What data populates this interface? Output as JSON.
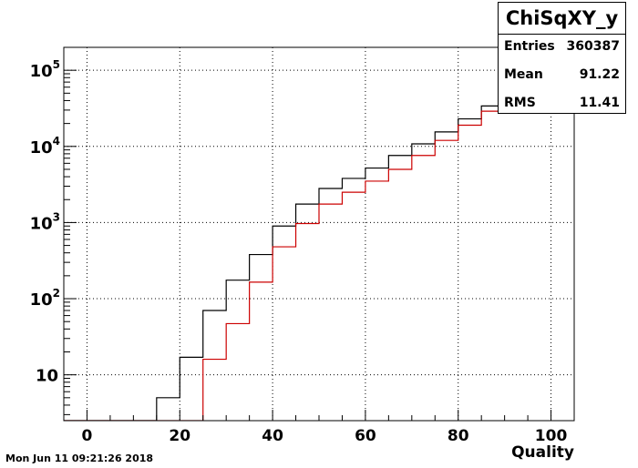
{
  "timestamp": "Mon Jun 11 09:21:26 2018",
  "stats": {
    "title": "ChiSqXY_y",
    "rows": [
      {
        "key": "Entries",
        "value": "360387"
      },
      {
        "key": "Mean",
        "value": "91.22"
      },
      {
        "key": "RMS",
        "value": "11.41"
      }
    ]
  },
  "colors": {
    "series1": "#000000",
    "series2": "#cc0000"
  },
  "chart_data": {
    "type": "line",
    "style": "step-histogram",
    "xlabel": "Quality",
    "ylabel": "",
    "xlim": [
      -5,
      105
    ],
    "ylim": [
      2.5,
      200000
    ],
    "yscale": "log",
    "grid": true,
    "x_ticks": [
      0,
      20,
      40,
      60,
      80,
      100
    ],
    "y_ticks": [
      {
        "value": 10,
        "label": "10",
        "sup": ""
      },
      {
        "value": 100,
        "label": "10",
        "sup": "2"
      },
      {
        "value": 1000,
        "label": "10",
        "sup": "3"
      },
      {
        "value": 10000,
        "label": "10",
        "sup": "4"
      },
      {
        "value": 100000,
        "label": "10",
        "sup": "5"
      }
    ],
    "bin_edges": [
      15,
      20,
      25,
      30,
      35,
      40,
      45,
      50,
      55,
      60,
      65,
      70,
      75,
      80,
      85,
      90
    ],
    "series": [
      {
        "values": [
          5,
          17,
          70,
          175,
          380,
          900,
          1750,
          2800,
          3800,
          5200,
          7600,
          10800,
          15500,
          23000,
          34000
        ]
      },
      {
        "values": [
          0,
          0,
          16,
          47,
          165,
          480,
          970,
          1750,
          2500,
          3500,
          5000,
          7600,
          12000,
          19000,
          29000
        ]
      }
    ]
  }
}
